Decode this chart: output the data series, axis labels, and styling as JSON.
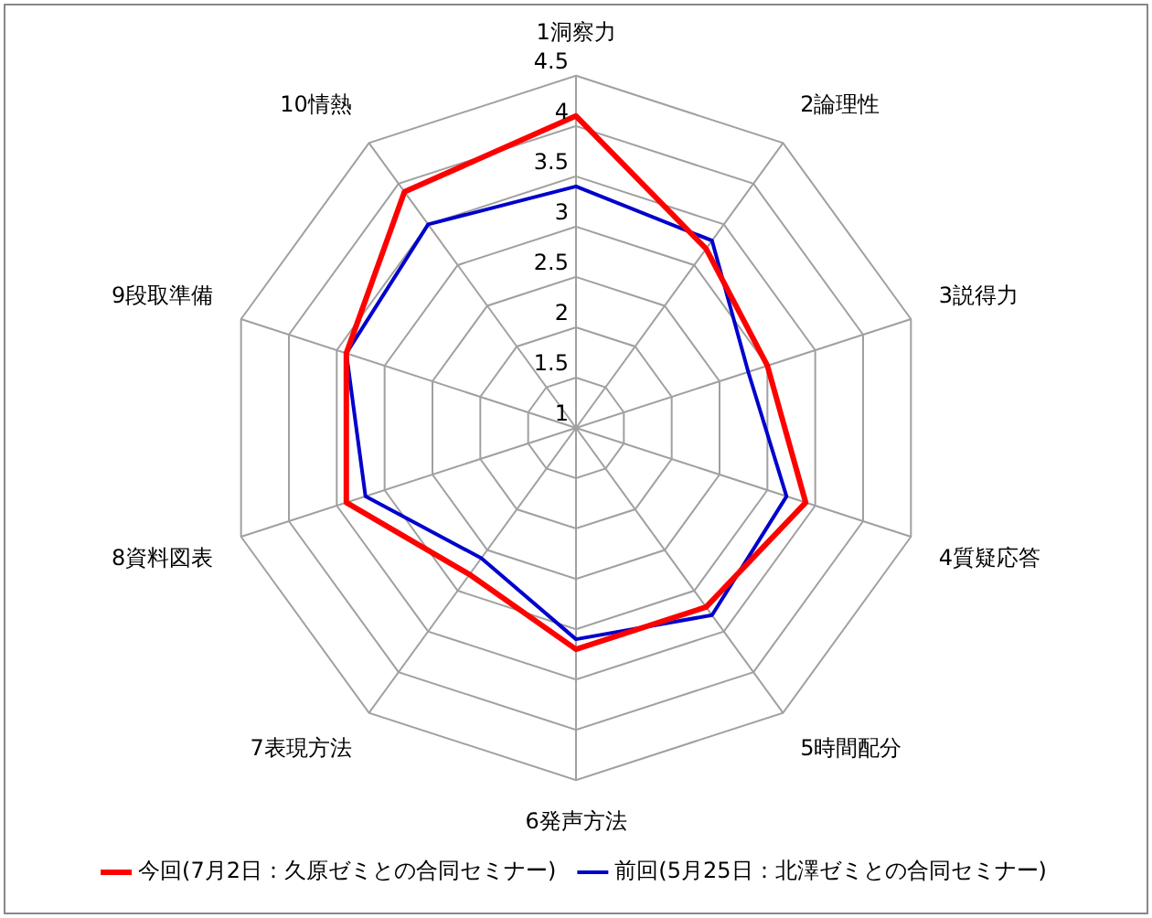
{
  "chart_data": {
    "type": "radar",
    "categories": [
      "1洞察力",
      "2論理性",
      "3説得力",
      "4質疑応答",
      "5時間配分",
      "6発声方法",
      "7表現方法",
      "8資料図表",
      "9段取準備",
      "10情熱"
    ],
    "series": [
      {
        "name": "今回(7月2日：久原ゼミとの合同セミナー)",
        "color": "#ff0000",
        "values": [
          4.1,
          3.2,
          3.0,
          3.4,
          3.2,
          3.2,
          2.8,
          3.4,
          3.4,
          3.9
        ]
      },
      {
        "name": "前回(5月25日：北澤ゼミとの合同セミナー)",
        "color": "#0000cc",
        "values": [
          3.4,
          3.3,
          2.8,
          3.2,
          3.3,
          3.1,
          2.6,
          3.2,
          3.4,
          3.5
        ]
      }
    ],
    "ylim": [
      1,
      4.5
    ],
    "yticks": [
      1,
      1.5,
      2,
      2.5,
      3,
      3.5,
      4,
      4.5
    ],
    "grid": true,
    "legend": "bottom",
    "marker": "none"
  }
}
